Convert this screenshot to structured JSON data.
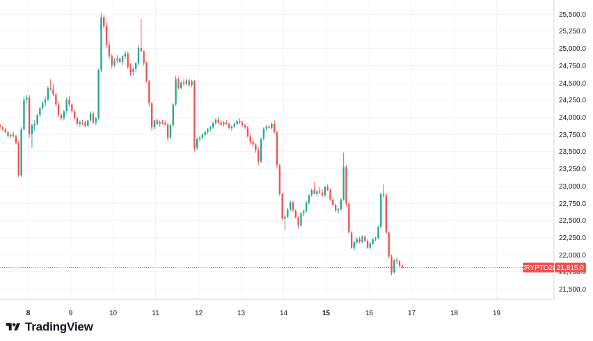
{
  "brand": {
    "logo_text": "TradingView"
  },
  "colors": {
    "up": "#26a69a",
    "down": "#ef5350",
    "grid": "#f0f3fa",
    "text": "#131722",
    "tag_bg": "#ef5350"
  },
  "last_price": {
    "symbol": "CRYPTO20",
    "value": "21,815.0",
    "numeric": 21815
  },
  "chart_data": {
    "type": "candlestick",
    "title": "",
    "xlabel": "",
    "ylabel": "",
    "grid": true,
    "ylim": [
      21350,
      25700
    ],
    "y_ticks": [
      {
        "value": 21500,
        "label": "21,500.0"
      },
      {
        "value": 21750,
        "label": "21,750.0"
      },
      {
        "value": 22000,
        "label": "22,000.0"
      },
      {
        "value": 22250,
        "label": "22,250.0"
      },
      {
        "value": 22500,
        "label": "22,500.0"
      },
      {
        "value": 22750,
        "label": "22,750.0"
      },
      {
        "value": 23000,
        "label": "23,000.0"
      },
      {
        "value": 23250,
        "label": "23,250.0"
      },
      {
        "value": 23500,
        "label": "23,500.0"
      },
      {
        "value": 23750,
        "label": "23,750.0"
      },
      {
        "value": 24000,
        "label": "24,000.0"
      },
      {
        "value": 24250,
        "label": "24,250.0"
      },
      {
        "value": 24500,
        "label": "24,500.0"
      },
      {
        "value": 24750,
        "label": "24,750.0"
      },
      {
        "value": 25000,
        "label": "25,000.0"
      },
      {
        "value": 25250,
        "label": "25,250.0"
      },
      {
        "value": 25500,
        "label": "25,500.0"
      }
    ],
    "xlim": [
      7.35,
      20.35
    ],
    "x_ticks": [
      {
        "value": 8,
        "label": "8",
        "bold": true
      },
      {
        "value": 9,
        "label": "9",
        "bold": false
      },
      {
        "value": 10,
        "label": "10",
        "bold": false
      },
      {
        "value": 11,
        "label": "11",
        "bold": false
      },
      {
        "value": 12,
        "label": "12",
        "bold": false
      },
      {
        "value": 13,
        "label": "13",
        "bold": false
      },
      {
        "value": 14,
        "label": "14",
        "bold": false
      },
      {
        "value": 15,
        "label": "15",
        "bold": true
      },
      {
        "value": 16,
        "label": "16",
        "bold": false
      },
      {
        "value": 17,
        "label": "17",
        "bold": false
      },
      {
        "value": 18,
        "label": "18",
        "bold": false
      },
      {
        "value": 19,
        "label": "19",
        "bold": false
      }
    ],
    "x_start": 7.35,
    "x_step": 0.0625,
    "ohlc": [
      [
        23880,
        23900,
        23830,
        23850
      ],
      [
        23850,
        23870,
        23800,
        23820
      ],
      [
        23820,
        23840,
        23760,
        23780
      ],
      [
        23780,
        23800,
        23700,
        23720
      ],
      [
        23720,
        23760,
        23690,
        23740
      ],
      [
        23740,
        23780,
        23700,
        23720
      ],
      [
        23720,
        23740,
        23600,
        23620
      ],
      [
        23620,
        23660,
        23120,
        23150
      ],
      [
        23150,
        23850,
        23130,
        23820
      ],
      [
        23820,
        24300,
        23800,
        24250
      ],
      [
        24250,
        24320,
        24200,
        24280
      ],
      [
        24280,
        24320,
        23700,
        23750
      ],
      [
        23750,
        23900,
        23550,
        23880
      ],
      [
        23880,
        23950,
        23800,
        23900
      ],
      [
        23900,
        24050,
        23880,
        24030
      ],
      [
        24030,
        24150,
        24000,
        24130
      ],
      [
        24130,
        24230,
        24100,
        24200
      ],
      [
        24200,
        24300,
        24150,
        24250
      ],
      [
        24250,
        24450,
        24230,
        24420
      ],
      [
        24420,
        24550,
        24380,
        24400
      ],
      [
        24400,
        24480,
        24300,
        24330
      ],
      [
        24330,
        24360,
        24150,
        24180
      ],
      [
        24180,
        24220,
        24000,
        24030
      ],
      [
        24030,
        24060,
        23950,
        23980
      ],
      [
        23980,
        24100,
        23950,
        24080
      ],
      [
        24080,
        24280,
        24060,
        24250
      ],
      [
        24250,
        24300,
        24150,
        24180
      ],
      [
        24180,
        24200,
        24050,
        24080
      ],
      [
        24080,
        24100,
        23950,
        23980
      ],
      [
        23980,
        24000,
        23880,
        23900
      ],
      [
        23900,
        23950,
        23860,
        23930
      ],
      [
        23930,
        23960,
        23880,
        23920
      ],
      [
        23920,
        23940,
        23850,
        23870
      ],
      [
        23870,
        23960,
        23850,
        23950
      ],
      [
        23950,
        24080,
        23930,
        24050
      ],
      [
        24050,
        24080,
        23900,
        23920
      ],
      [
        23920,
        24000,
        23880,
        23980
      ],
      [
        23980,
        24700,
        23960,
        24680
      ],
      [
        24680,
        25500,
        24650,
        25450
      ],
      [
        25450,
        25480,
        25280,
        25320
      ],
      [
        25320,
        25380,
        25000,
        25050
      ],
      [
        25050,
        25100,
        24850,
        24880
      ],
      [
        24880,
        24920,
        24700,
        24750
      ],
      [
        24750,
        24850,
        24720,
        24820
      ],
      [
        24820,
        24900,
        24780,
        24850
      ],
      [
        24850,
        24860,
        24780,
        24800
      ],
      [
        24800,
        24900,
        24760,
        24880
      ],
      [
        24880,
        24960,
        24840,
        24920
      ],
      [
        24920,
        24950,
        24700,
        24720
      ],
      [
        24720,
        24780,
        24600,
        24650
      ],
      [
        24650,
        24720,
        24600,
        24700
      ],
      [
        24700,
        24800,
        24650,
        24780
      ],
      [
        24780,
        25050,
        24750,
        25000
      ],
      [
        25000,
        25420,
        24980,
        24950
      ],
      [
        24950,
        24970,
        24750,
        24780
      ],
      [
        24780,
        24800,
        24500,
        24520
      ],
      [
        24520,
        24540,
        24150,
        24200
      ],
      [
        24200,
        24220,
        23800,
        23850
      ],
      [
        23850,
        23960,
        23820,
        23950
      ],
      [
        23950,
        23980,
        23880,
        23900
      ],
      [
        23900,
        23950,
        23860,
        23930
      ],
      [
        23930,
        23960,
        23890,
        23910
      ],
      [
        23910,
        23950,
        23870,
        23890
      ],
      [
        23890,
        23920,
        23650,
        23700
      ],
      [
        23700,
        23900,
        23680,
        23880
      ],
      [
        23880,
        24200,
        23860,
        24180
      ],
      [
        24180,
        24600,
        24160,
        24550
      ],
      [
        24550,
        24580,
        24400,
        24420
      ],
      [
        24420,
        24520,
        24400,
        24500
      ],
      [
        24500,
        24550,
        24450,
        24480
      ],
      [
        24480,
        24560,
        24460,
        24530
      ],
      [
        24530,
        24560,
        24440,
        24460
      ],
      [
        24460,
        24540,
        24430,
        24520
      ],
      [
        24520,
        24540,
        23500,
        23550
      ],
      [
        23550,
        23700,
        23520,
        23680
      ],
      [
        23680,
        23720,
        23640,
        23700
      ],
      [
        23700,
        23760,
        23680,
        23740
      ],
      [
        23740,
        23800,
        23720,
        23780
      ],
      [
        23780,
        23840,
        23750,
        23820
      ],
      [
        23820,
        23870,
        23790,
        23850
      ],
      [
        23850,
        23930,
        23830,
        23910
      ],
      [
        23910,
        23980,
        23890,
        23960
      ],
      [
        23960,
        24000,
        23900,
        23920
      ],
      [
        23920,
        23950,
        23870,
        23890
      ],
      [
        23890,
        23940,
        23860,
        23920
      ],
      [
        23920,
        23960,
        23880,
        23900
      ],
      [
        23900,
        23920,
        23820,
        23840
      ],
      [
        23840,
        23880,
        23800,
        23860
      ],
      [
        23860,
        23920,
        23840,
        23900
      ],
      [
        23900,
        23960,
        23880,
        23940
      ],
      [
        23940,
        23980,
        23900,
        23920
      ],
      [
        23920,
        23940,
        23860,
        23880
      ],
      [
        23880,
        23900,
        23830,
        23850
      ],
      [
        23850,
        23870,
        23700,
        23720
      ],
      [
        23720,
        23760,
        23600,
        23640
      ],
      [
        23640,
        23700,
        23560,
        23600
      ],
      [
        23600,
        23620,
        23480,
        23520
      ],
      [
        23520,
        23560,
        23300,
        23350
      ],
      [
        23350,
        23700,
        23330,
        23680
      ],
      [
        23680,
        23850,
        23660,
        23830
      ],
      [
        23830,
        23880,
        23800,
        23860
      ],
      [
        23860,
        23880,
        23820,
        23840
      ],
      [
        23840,
        23920,
        23820,
        23900
      ],
      [
        23900,
        23950,
        23760,
        23780
      ],
      [
        23780,
        23800,
        23250,
        23300
      ],
      [
        23300,
        23320,
        22850,
        22880
      ],
      [
        22880,
        22900,
        22500,
        22520
      ],
      [
        22520,
        22580,
        22350,
        22550
      ],
      [
        22550,
        22680,
        22530,
        22650
      ],
      [
        22650,
        22780,
        22630,
        22760
      ],
      [
        22760,
        22780,
        22620,
        22640
      ],
      [
        22640,
        22660,
        22520,
        22540
      ],
      [
        22540,
        22560,
        22380,
        22420
      ],
      [
        22420,
        22620,
        22400,
        22600
      ],
      [
        22600,
        22650,
        22560,
        22630
      ],
      [
        22630,
        22780,
        22610,
        22750
      ],
      [
        22750,
        22880,
        22730,
        22860
      ],
      [
        22860,
        22960,
        22840,
        22940
      ],
      [
        22940,
        23050,
        22900,
        22880
      ],
      [
        22880,
        22950,
        22850,
        22920
      ],
      [
        22920,
        22980,
        22880,
        22900
      ],
      [
        22900,
        22950,
        22840,
        22860
      ],
      [
        22860,
        23000,
        22840,
        22980
      ],
      [
        22980,
        23020,
        22920,
        22940
      ],
      [
        22940,
        22960,
        22780,
        22800
      ],
      [
        22800,
        22820,
        22700,
        22720
      ],
      [
        22720,
        22740,
        22620,
        22640
      ],
      [
        22640,
        22680,
        22600,
        22660
      ],
      [
        22660,
        22820,
        22640,
        22800
      ],
      [
        22800,
        23480,
        22780,
        23270
      ],
      [
        23270,
        23300,
        22700,
        22740
      ],
      [
        22740,
        22760,
        22300,
        22320
      ],
      [
        22320,
        22340,
        22080,
        22100
      ],
      [
        22100,
        22200,
        22060,
        22180
      ],
      [
        22180,
        22250,
        22150,
        22220
      ],
      [
        22220,
        22260,
        22160,
        22180
      ],
      [
        22180,
        22280,
        22160,
        22260
      ],
      [
        22260,
        22280,
        22180,
        22200
      ],
      [
        22200,
        22220,
        22080,
        22100
      ],
      [
        22100,
        22180,
        22080,
        22160
      ],
      [
        22160,
        22240,
        22140,
        22220
      ],
      [
        22220,
        22260,
        22200,
        22240
      ],
      [
        22240,
        22420,
        22220,
        22400
      ],
      [
        22400,
        22900,
        22380,
        22880
      ],
      [
        22880,
        23020,
        22820,
        22860
      ],
      [
        22860,
        22880,
        22300,
        22320
      ],
      [
        22320,
        22340,
        21950,
        21970
      ],
      [
        21970,
        22000,
        21700,
        21740
      ],
      [
        21740,
        21940,
        21720,
        21920
      ],
      [
        21920,
        21960,
        21860,
        21900
      ],
      [
        21900,
        21920,
        21820,
        21840
      ],
      [
        21840,
        21860,
        21800,
        21815
      ]
    ]
  }
}
